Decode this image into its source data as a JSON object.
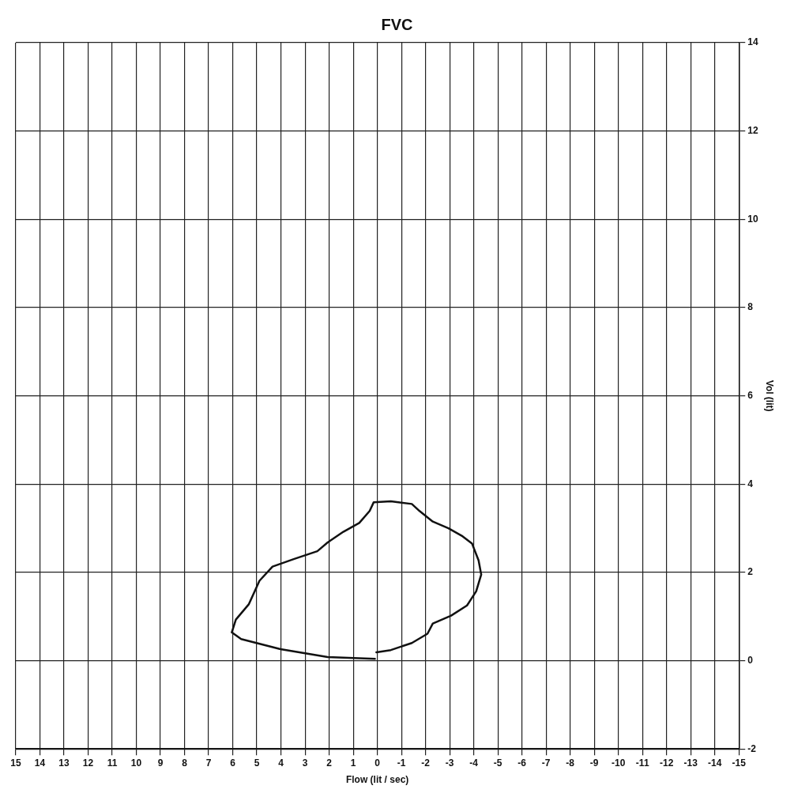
{
  "chart_data": {
    "type": "line",
    "title": "FVC",
    "xlabel": "Flow (lit / sec)",
    "ylabel": "Vol (lit)",
    "xlim": [
      15,
      -15
    ],
    "xticks": [
      15,
      14,
      13,
      12,
      11,
      10,
      9,
      8,
      7,
      6,
      5,
      4,
      3,
      2,
      1,
      0,
      -1,
      -2,
      -3,
      -4,
      -5,
      -6,
      -7,
      -8,
      -9,
      -10,
      -11,
      -12,
      -13,
      -14,
      -15
    ],
    "ylim": [
      -2,
      14
    ],
    "yticks": [
      -2,
      0,
      2,
      4,
      6,
      8,
      10,
      12,
      14
    ],
    "grid": true,
    "marker": "none",
    "line_style": "solid",
    "series": [
      {
        "color": "#111111",
        "x": [
          0.04,
          -0.56,
          -1.43,
          -2.08,
          -2.3,
          -3.06,
          -3.72,
          -4.1,
          -4.31,
          -4.2,
          -3.93,
          -3.5,
          -2.95,
          -2.3,
          -1.75,
          -1.43,
          -0.56,
          0.15,
          0.32,
          0.75,
          1.41,
          2.06,
          2.49,
          3.47,
          4.35,
          4.89,
          5.33,
          5.87,
          6.04,
          5.65,
          4.02,
          2.06,
          0.1
        ],
        "values": [
          0.19,
          0.24,
          0.4,
          0.61,
          0.84,
          1.02,
          1.25,
          1.57,
          1.95,
          2.27,
          2.65,
          2.83,
          3.0,
          3.15,
          3.39,
          3.55,
          3.61,
          3.59,
          3.39,
          3.12,
          2.92,
          2.68,
          2.48,
          2.3,
          2.13,
          1.81,
          1.28,
          0.93,
          0.64,
          0.49,
          0.26,
          0.08,
          0.04
        ]
      }
    ]
  }
}
